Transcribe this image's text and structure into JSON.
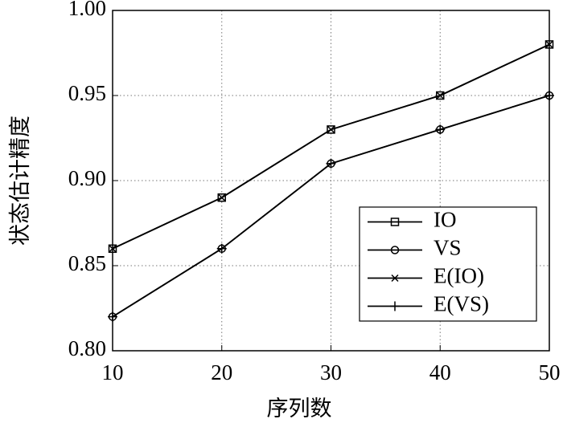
{
  "chart_data": {
    "type": "line",
    "xlabel": "序列数",
    "ylabel": "状态估计精度",
    "x": [
      10,
      20,
      30,
      40,
      50
    ],
    "xlim": [
      10,
      50
    ],
    "xticks": [
      10,
      20,
      30,
      40,
      50
    ],
    "ylim": [
      0.8,
      1.0
    ],
    "yticks": [
      {
        "value": 0.8,
        "label": "0.80"
      },
      {
        "value": 0.85,
        "label": "0.85"
      },
      {
        "value": 0.9,
        "label": "0.90"
      },
      {
        "value": 0.95,
        "label": "0.95"
      },
      {
        "value": 1.0,
        "label": "1.00"
      }
    ],
    "grid": true,
    "legend": "lower right",
    "series": [
      {
        "name": "IO",
        "color": "#000000",
        "marker": "square",
        "values": [
          0.86,
          0.89,
          0.93,
          0.95,
          0.98
        ]
      },
      {
        "name": "VS",
        "color": "#000000",
        "marker": "circle",
        "values": [
          0.82,
          0.86,
          0.91,
          0.93,
          0.95
        ]
      },
      {
        "name": "E(IO)",
        "color": "#000000",
        "marker": "x",
        "values": [
          0.86,
          0.89,
          0.93,
          0.95,
          0.98
        ]
      },
      {
        "name": "E(VS)",
        "color": "#000000",
        "marker": "plus",
        "values": [
          0.82,
          0.86,
          0.91,
          0.93,
          0.95
        ]
      }
    ]
  }
}
